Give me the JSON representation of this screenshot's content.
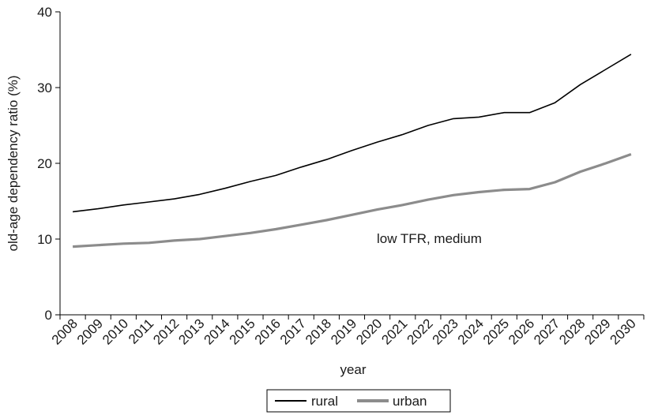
{
  "chart_data": {
    "type": "line",
    "title": "",
    "xlabel": "year",
    "ylabel": "old-age dependency ratio (%)",
    "ylim": [
      0,
      40
    ],
    "yticks": [
      0,
      10,
      20,
      30,
      40
    ],
    "annotation": "low TFR, medium",
    "categories": [
      "2008",
      "2009",
      "2010",
      "2011",
      "2012",
      "2013",
      "2014",
      "2015",
      "2016",
      "2017",
      "2018",
      "2019",
      "2020",
      "2021",
      "2022",
      "2023",
      "2024",
      "2025",
      "2026",
      "2027",
      "2028",
      "2029",
      "2030"
    ],
    "series": [
      {
        "name": "rural",
        "color": "#000000",
        "values": [
          13.6,
          14.0,
          14.5,
          14.9,
          15.3,
          15.9,
          16.7,
          17.6,
          18.4,
          19.5,
          20.5,
          21.7,
          22.8,
          23.8,
          25.0,
          25.9,
          26.1,
          26.7,
          26.7,
          28.0,
          30.4,
          32.4,
          34.4
        ]
      },
      {
        "name": "urban",
        "color": "#8c8c8c",
        "values": [
          9.0,
          9.2,
          9.4,
          9.5,
          9.8,
          10.0,
          10.4,
          10.8,
          11.3,
          11.9,
          12.5,
          13.2,
          13.9,
          14.5,
          15.2,
          15.8,
          16.2,
          16.5,
          16.6,
          17.5,
          18.9,
          20.0,
          21.2
        ]
      }
    ],
    "legend_position": "bottom-center",
    "grid": false
  }
}
